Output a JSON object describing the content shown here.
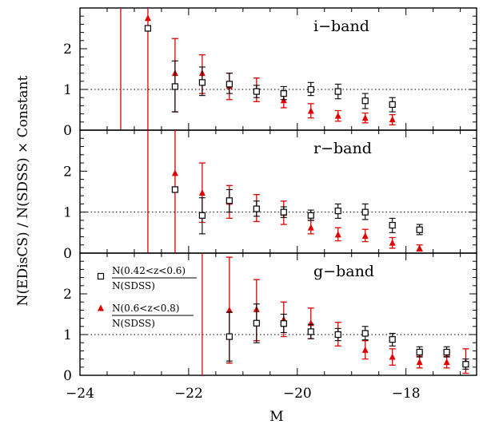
{
  "chart_data": {
    "type": "scatter",
    "xlabel": "M",
    "ylabel": "N(EDisCS) / N(SDSS) × Constant",
    "xlim": [
      -24,
      -16.7
    ],
    "x_ticks": [
      -24,
      -22,
      -20,
      -18
    ],
    "reference_line": 1,
    "legend": {
      "placement": "top-left of bottom panel",
      "entries": [
        {
          "marker": "open-square",
          "numerator": "N(0.42<z<0.6)",
          "denominator": "N(SDSS)"
        },
        {
          "marker": "filled-triangle",
          "numerator": "N(0.6<z<0.8)",
          "denominator": "N(SDSS)"
        }
      ]
    },
    "colors": {
      "low_z": "#000000",
      "high_z": "#e00000"
    },
    "panels": [
      {
        "label": "i−band",
        "ylim": [
          0,
          3
        ],
        "y_ticks": [
          "0",
          "1",
          "2"
        ],
        "series_low": [
          {
            "x": -22.75,
            "y": 2.5,
            "lo": 2.5,
            "hi": 2.5
          },
          {
            "x": -22.25,
            "y": 1.07,
            "lo": 0.45,
            "hi": 1.7
          },
          {
            "x": -21.75,
            "y": 1.17,
            "lo": 0.85,
            "hi": 1.55
          },
          {
            "x": -21.25,
            "y": 1.13,
            "lo": 0.9,
            "hi": 1.4
          },
          {
            "x": -20.75,
            "y": 0.95,
            "lo": 0.8,
            "hi": 1.1
          },
          {
            "x": -20.25,
            "y": 0.9,
            "lo": 0.75,
            "hi": 1.07
          },
          {
            "x": -19.75,
            "y": 1.0,
            "lo": 0.85,
            "hi": 1.17
          },
          {
            "x": -19.25,
            "y": 0.95,
            "lo": 0.77,
            "hi": 1.13
          },
          {
            "x": -18.75,
            "y": 0.72,
            "lo": 0.53,
            "hi": 0.9
          },
          {
            "x": -18.25,
            "y": 0.63,
            "lo": 0.45,
            "hi": 0.8
          }
        ],
        "series_high": [
          {
            "x": -23.25,
            "y": null,
            "lo": 0,
            "hi": 3
          },
          {
            "x": -22.75,
            "y": 2.75,
            "lo": 0,
            "hi": 3
          },
          {
            "x": -22.25,
            "y": 1.4,
            "lo": 0.45,
            "hi": 2.25
          },
          {
            "x": -21.75,
            "y": 1.4,
            "lo": 0.9,
            "hi": 1.85
          },
          {
            "x": -21.25,
            "y": 1.08,
            "lo": 0.75,
            "hi": 1.4
          },
          {
            "x": -20.75,
            "y": 0.98,
            "lo": 0.7,
            "hi": 1.28
          },
          {
            "x": -20.25,
            "y": 0.73,
            "lo": 0.55,
            "hi": 0.92
          },
          {
            "x": -19.75,
            "y": 0.47,
            "lo": 0.3,
            "hi": 0.65
          },
          {
            "x": -19.25,
            "y": 0.35,
            "lo": 0.22,
            "hi": 0.48
          },
          {
            "x": -18.75,
            "y": 0.3,
            "lo": 0.18,
            "hi": 0.42
          },
          {
            "x": -18.25,
            "y": 0.26,
            "lo": 0.13,
            "hi": 0.38
          }
        ]
      },
      {
        "label": "r−band",
        "ylim": [
          0,
          3
        ],
        "y_ticks": [
          "0",
          "1",
          "2"
        ],
        "series_low": [
          {
            "x": -22.25,
            "y": 1.55,
            "lo": 1.55,
            "hi": 1.55
          },
          {
            "x": -21.75,
            "y": 0.92,
            "lo": 0.47,
            "hi": 1.35
          },
          {
            "x": -21.25,
            "y": 1.28,
            "lo": 1.0,
            "hi": 1.55
          },
          {
            "x": -20.75,
            "y": 1.08,
            "lo": 0.9,
            "hi": 1.27
          },
          {
            "x": -20.25,
            "y": 1.0,
            "lo": 0.87,
            "hi": 1.13
          },
          {
            "x": -19.75,
            "y": 0.92,
            "lo": 0.8,
            "hi": 1.05
          },
          {
            "x": -19.25,
            "y": 1.03,
            "lo": 0.85,
            "hi": 1.2
          },
          {
            "x": -18.75,
            "y": 1.0,
            "lo": 0.82,
            "hi": 1.2
          },
          {
            "x": -18.25,
            "y": 0.68,
            "lo": 0.5,
            "hi": 0.85
          },
          {
            "x": -17.75,
            "y": 0.57,
            "lo": 0.45,
            "hi": 0.7
          }
        ],
        "series_high": [
          {
            "x": -22.75,
            "y": null,
            "lo": 0,
            "hi": 3
          },
          {
            "x": -22.25,
            "y": 1.95,
            "lo": 0,
            "hi": 3
          },
          {
            "x": -21.75,
            "y": 1.47,
            "lo": 0.75,
            "hi": 2.2
          },
          {
            "x": -21.25,
            "y": 1.25,
            "lo": 0.85,
            "hi": 1.65
          },
          {
            "x": -20.75,
            "y": 1.1,
            "lo": 0.77,
            "hi": 1.43
          },
          {
            "x": -20.25,
            "y": 0.98,
            "lo": 0.7,
            "hi": 1.27
          },
          {
            "x": -19.75,
            "y": 0.62,
            "lo": 0.47,
            "hi": 0.8
          },
          {
            "x": -19.25,
            "y": 0.45,
            "lo": 0.3,
            "hi": 0.62
          },
          {
            "x": -18.75,
            "y": 0.42,
            "lo": 0.28,
            "hi": 0.58
          },
          {
            "x": -18.25,
            "y": 0.25,
            "lo": 0.12,
            "hi": 0.38
          },
          {
            "x": -17.75,
            "y": 0.12,
            "lo": 0.05,
            "hi": 0.2
          }
        ]
      },
      {
        "label": "g−band",
        "ylim": [
          0,
          3
        ],
        "y_ticks": [
          "0",
          "1",
          "2"
        ],
        "series_low": [
          {
            "x": -21.25,
            "y": 0.95,
            "lo": 0.35,
            "hi": 1.55
          },
          {
            "x": -20.75,
            "y": 1.28,
            "lo": 0.8,
            "hi": 1.75
          },
          {
            "x": -20.25,
            "y": 1.27,
            "lo": 1.05,
            "hi": 1.5
          },
          {
            "x": -19.75,
            "y": 1.07,
            "lo": 0.9,
            "hi": 1.25
          },
          {
            "x": -19.25,
            "y": 1.0,
            "lo": 0.85,
            "hi": 1.15
          },
          {
            "x": -18.75,
            "y": 1.03,
            "lo": 0.87,
            "hi": 1.2
          },
          {
            "x": -18.25,
            "y": 0.88,
            "lo": 0.72,
            "hi": 1.03
          },
          {
            "x": -17.75,
            "y": 0.57,
            "lo": 0.45,
            "hi": 0.7
          },
          {
            "x": -17.25,
            "y": 0.57,
            "lo": 0.45,
            "hi": 0.7
          },
          {
            "x": -16.9,
            "y": 0.27,
            "lo": 0.15,
            "hi": 0.4
          }
        ],
        "series_high": [
          {
            "x": -21.75,
            "y": null,
            "lo": 0,
            "hi": 3
          },
          {
            "x": -21.25,
            "y": 1.6,
            "lo": 0.3,
            "hi": 2.9
          },
          {
            "x": -20.75,
            "y": 1.62,
            "lo": 0.85,
            "hi": 2.35
          },
          {
            "x": -20.25,
            "y": 1.37,
            "lo": 0.95,
            "hi": 1.8
          },
          {
            "x": -19.75,
            "y": 1.28,
            "lo": 0.9,
            "hi": 1.65
          },
          {
            "x": -19.25,
            "y": 1.0,
            "lo": 0.72,
            "hi": 1.3
          },
          {
            "x": -18.75,
            "y": 0.62,
            "lo": 0.4,
            "hi": 0.85
          },
          {
            "x": -18.25,
            "y": 0.45,
            "lo": 0.25,
            "hi": 0.65
          },
          {
            "x": -17.75,
            "y": 0.32,
            "lo": 0.18,
            "hi": 0.47
          },
          {
            "x": -17.25,
            "y": 0.32,
            "lo": 0.18,
            "hi": 0.47
          },
          {
            "x": -16.9,
            "y": 0.32,
            "lo": 0.05,
            "hi": 0.65
          }
        ]
      }
    ]
  }
}
